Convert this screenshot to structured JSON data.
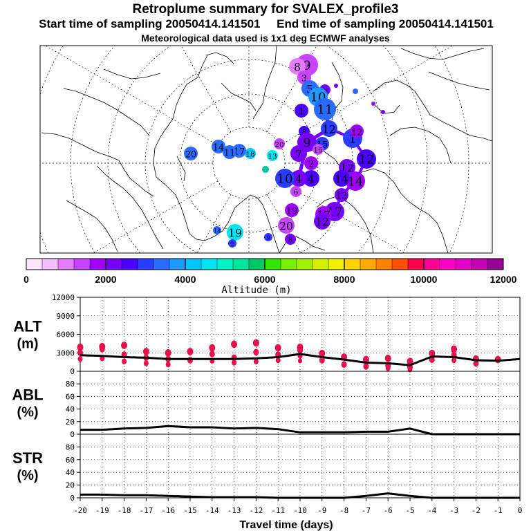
{
  "header": {
    "title": "Retroplume summary for SVALEX_profile3",
    "start_label": "Start time of sampling 20050414.141501",
    "end_label": "End time of sampling 20050414.141501",
    "met_label": "Meteorological data used is 1x1 deg ECMWF analyses"
  },
  "map": {
    "plume_numbers": [
      "9",
      "8",
      "3",
      "5",
      "10",
      "14",
      "11",
      "12",
      "1",
      "17",
      "16",
      "15",
      "20",
      "13",
      "19",
      "18",
      "2",
      "7",
      "6",
      "4"
    ],
    "colors": {
      "coast": "#000000",
      "grid": "#000000"
    }
  },
  "colorbar": {
    "title": "Altitude (m)",
    "tick_labels": [
      "0",
      "2000",
      "4000",
      "6000",
      "8000",
      "10000",
      "12000"
    ],
    "range": [
      0,
      12000
    ],
    "colors": [
      "#ffe6ff",
      "#f5c0ff",
      "#e67dff",
      "#c844ff",
      "#a000ff",
      "#7800ff",
      "#4a00ff",
      "#2a3cff",
      "#2a6bff",
      "#1b9aff",
      "#00c8ff",
      "#00e6f0",
      "#00f5c8",
      "#00e6a0",
      "#00c864",
      "#32e600",
      "#78f000",
      "#a0f000",
      "#d2f000",
      "#f0f000",
      "#ffd200",
      "#ffaa00",
      "#ff8200",
      "#ff5000",
      "#ff0050",
      "#ff0096",
      "#ff00c8",
      "#e600c8",
      "#c800b4",
      "#960096"
    ]
  },
  "chart_data": [
    {
      "type": "line",
      "panel": "ALT",
      "ylabel_lines": [
        "ALT",
        "(m)"
      ],
      "ylim": [
        0,
        12000
      ],
      "yticks": [
        0,
        3000,
        6000,
        9000,
        12000
      ],
      "ytick_labels": [
        "0",
        "3000",
        "6000",
        "9000",
        "12000"
      ],
      "x": [
        -20,
        -19,
        -18,
        -17,
        -16,
        -15,
        -14,
        -13,
        -12,
        -11,
        -10,
        -9,
        -8,
        -7,
        -6,
        -5,
        -4,
        -3,
        -2,
        -1,
        0
      ],
      "values": [
        2600,
        2500,
        2300,
        2200,
        2000,
        2000,
        2000,
        2000,
        2100,
        2300,
        2800,
        2300,
        1900,
        1400,
        1300,
        1000,
        2400,
        2300,
        1800,
        1700,
        2000
      ],
      "scatter": [
        {
          "x": -20,
          "ys": [
            3900,
            3000,
            2000
          ]
        },
        {
          "x": -19,
          "ys": [
            4000,
            3600,
            2100
          ]
        },
        {
          "x": -18,
          "ys": [
            4200,
            2700,
            1600
          ]
        },
        {
          "x": -17,
          "ys": [
            3200,
            2200,
            1300
          ]
        },
        {
          "x": -16,
          "ys": [
            3000,
            2000,
            1100
          ]
        },
        {
          "x": -15,
          "ys": [
            3200,
            1800
          ]
        },
        {
          "x": -14,
          "ys": [
            3800,
            2800,
            1700
          ]
        },
        {
          "x": -13,
          "ys": [
            4400,
            2200,
            1400
          ]
        },
        {
          "x": -12,
          "ys": [
            4600,
            3100,
            1600
          ]
        },
        {
          "x": -11,
          "ys": [
            3800,
            2700,
            1800
          ]
        },
        {
          "x": -10,
          "ys": [
            3900,
            3400,
            2500,
            1700
          ]
        },
        {
          "x": -9,
          "ys": [
            2900,
            1800
          ]
        },
        {
          "x": -8,
          "ys": [
            2300,
            1100
          ]
        },
        {
          "x": -7,
          "ys": [
            1900,
            800
          ]
        },
        {
          "x": -6,
          "ys": [
            2100,
            900,
            500
          ]
        },
        {
          "x": -5,
          "ys": [
            1600,
            700,
            300
          ]
        },
        {
          "x": -4,
          "ys": [
            2900,
            1900
          ]
        },
        {
          "x": -3,
          "ys": [
            3600,
            2600,
            1800
          ]
        },
        {
          "x": -2,
          "ys": [
            2000,
            1300
          ]
        },
        {
          "x": -1,
          "ys": [
            1900
          ]
        }
      ]
    },
    {
      "type": "line",
      "panel": "ABL",
      "ylabel_lines": [
        "ABL",
        "(%)"
      ],
      "ylim": [
        0,
        100
      ],
      "yticks": [
        0,
        20,
        40,
        60,
        80
      ],
      "ytick_labels": [
        "0",
        "20",
        "40",
        "60",
        "80"
      ],
      "x": [
        -20,
        -19,
        -18,
        -17,
        -16,
        -15,
        -14,
        -13,
        -12,
        -11,
        -10,
        -9,
        -8,
        -7,
        -6,
        -5,
        -4,
        -3,
        -2,
        -1,
        0
      ],
      "values": [
        7,
        7,
        9,
        10,
        13,
        11,
        11,
        9,
        10,
        8,
        3,
        3,
        3,
        4,
        4,
        9,
        0,
        0,
        0,
        0,
        0
      ]
    },
    {
      "type": "line",
      "panel": "STR",
      "ylabel_lines": [
        "STR",
        "(%)"
      ],
      "ylim": [
        0,
        100
      ],
      "yticks": [
        0,
        20,
        40,
        60,
        80
      ],
      "ytick_labels": [
        "0",
        "20",
        "40",
        "60",
        "80"
      ],
      "x": [
        -20,
        -19,
        -18,
        -17,
        -16,
        -15,
        -14,
        -13,
        -12,
        -11,
        -10,
        -9,
        -8,
        -7,
        -6,
        -5,
        -4,
        -3,
        -2,
        -1,
        0
      ],
      "values": [
        5,
        5,
        4,
        4,
        3,
        2,
        1,
        1,
        1,
        0,
        0,
        0,
        0,
        3,
        7,
        3,
        0,
        0,
        0,
        0,
        0
      ],
      "xlabel": "Travel time (days)",
      "xtick_labels": [
        "-20",
        "-19",
        "-18",
        "-17",
        "-16",
        "-15",
        "-14",
        "-13",
        "-12",
        "-11",
        "-10",
        "-9",
        "-8",
        "-7",
        "-6",
        "-5",
        "-4",
        "-3",
        "-2",
        "-1",
        "0"
      ]
    }
  ]
}
